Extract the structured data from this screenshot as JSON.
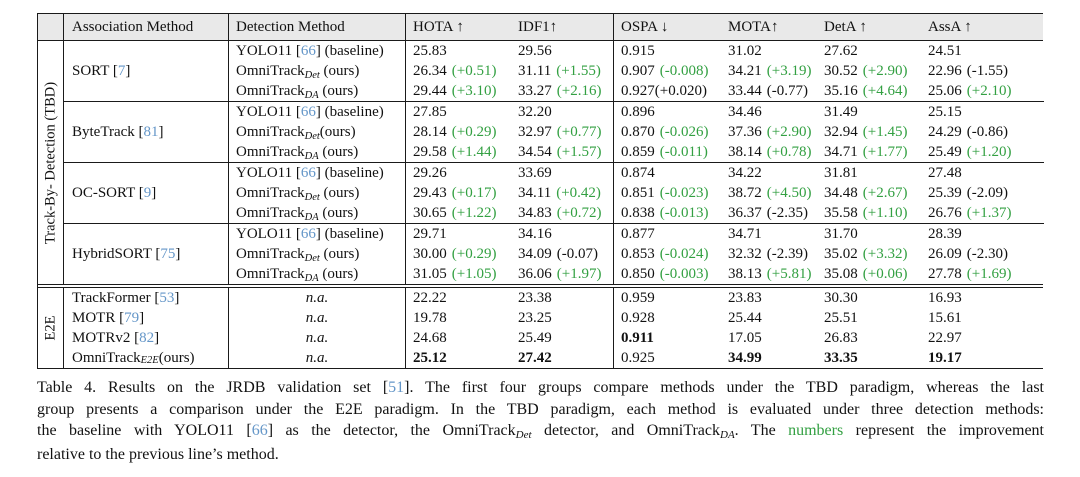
{
  "colors": {
    "improvement_green": "#33a042",
    "citation_blue": "#6496c8",
    "header_background": "#e9e9e9",
    "rule_line": "#1a1a1a"
  },
  "table": {
    "tbd_label": "Track-By- Detection (TBD)",
    "e2e_label": "E2E",
    "col_association": "Association Method",
    "col_detection": "Detection Method",
    "metric_headers": [
      "HOTA ↑",
      "IDF1↑",
      "OSPA ↓",
      "MOTA↑",
      "DetA ↑",
      "AssA ↑"
    ],
    "tbd_groups": [
      {
        "association": [
          {
            "t": "SORT ["
          },
          {
            "t": "7",
            "c": "blue"
          },
          {
            "t": "]"
          }
        ],
        "rows": [
          {
            "det": [
              {
                "t": "YOLO11 ["
              },
              {
                "t": "66",
                "c": "blue"
              },
              {
                "t": "] (baseline)"
              }
            ],
            "cells": [
              {
                "v": "25.83"
              },
              {
                "v": "29.56"
              },
              {
                "v": "0.915"
              },
              {
                "v": "31.02"
              },
              {
                "v": "27.62"
              },
              {
                "v": "24.51"
              }
            ]
          },
          {
            "det": [
              {
                "t": "OmniTrack"
              },
              {
                "t": "Det",
                "sub": true
              },
              {
                "t": " (ours)"
              }
            ],
            "cells": [
              {
                "v": "26.34",
                "d": "(+0.51)",
                "g": true
              },
              {
                "v": "31.11",
                "d": "(+1.55)",
                "g": true
              },
              {
                "v": "0.907",
                "d": "(-0.008)",
                "g": true
              },
              {
                "v": "34.21",
                "d": "(+3.19)",
                "g": true
              },
              {
                "v": "30.52",
                "d": "(+2.90)",
                "g": true
              },
              {
                "v": "22.96",
                "d": "(-1.55)"
              }
            ]
          },
          {
            "det": [
              {
                "t": "OmniTrack"
              },
              {
                "t": "DA",
                "sub": true
              },
              {
                "t": " (ours)"
              }
            ],
            "cells": [
              {
                "v": "29.44",
                "d": "(+3.10)",
                "g": true
              },
              {
                "v": "33.27",
                "d": "(+2.16)",
                "g": true
              },
              {
                "v": "0.927",
                "d": "(+0.020)",
                "ns": true
              },
              {
                "v": "33.44",
                "d": "(-0.77)"
              },
              {
                "v": "35.16",
                "d": "(+4.64)",
                "g": true
              },
              {
                "v": "25.06",
                "d": "(+2.10)",
                "g": true
              }
            ]
          }
        ]
      },
      {
        "association": [
          {
            "t": "ByteTrack ["
          },
          {
            "t": "81",
            "c": "blue"
          },
          {
            "t": "]"
          }
        ],
        "rows": [
          {
            "det": [
              {
                "t": "YOLO11 ["
              },
              {
                "t": "66",
                "c": "blue"
              },
              {
                "t": "] (baseline)"
              }
            ],
            "cells": [
              {
                "v": "27.85"
              },
              {
                "v": "32.20"
              },
              {
                "v": "0.896"
              },
              {
                "v": "34.46"
              },
              {
                "v": "31.49"
              },
              {
                "v": "25.15"
              }
            ]
          },
          {
            "det": [
              {
                "t": "OmniTrack"
              },
              {
                "t": "Det",
                "sub": true
              },
              {
                "t": "(ours)"
              }
            ],
            "cells": [
              {
                "v": "28.14",
                "d": "(+0.29)",
                "g": true
              },
              {
                "v": "32.97",
                "d": "(+0.77)",
                "g": true
              },
              {
                "v": "0.870",
                "d": "(-0.026)",
                "g": true
              },
              {
                "v": "37.36",
                "d": "(+2.90)",
                "g": true
              },
              {
                "v": "32.94",
                "d": "(+1.45)",
                "g": true
              },
              {
                "v": "24.29",
                "d": "(-0.86)"
              }
            ]
          },
          {
            "det": [
              {
                "t": "OmniTrack"
              },
              {
                "t": "DA",
                "sub": true
              },
              {
                "t": " (ours)"
              }
            ],
            "cells": [
              {
                "v": "29.58",
                "d": "(+1.44)",
                "g": true
              },
              {
                "v": "34.54",
                "d": "(+1.57)",
                "g": true
              },
              {
                "v": "0.859",
                "d": "(-0.011)",
                "g": true
              },
              {
                "v": "38.14",
                "d": "(+0.78)",
                "g": true
              },
              {
                "v": "34.71",
                "d": "(+1.77)",
                "g": true
              },
              {
                "v": "25.49",
                "d": "(+1.20)",
                "g": true
              }
            ]
          }
        ]
      },
      {
        "association": [
          {
            "t": "OC-SORT ["
          },
          {
            "t": "9",
            "c": "blue"
          },
          {
            "t": "]"
          }
        ],
        "rows": [
          {
            "det": [
              {
                "t": "YOLO11 ["
              },
              {
                "t": "66",
                "c": "blue"
              },
              {
                "t": "] (baseline)"
              }
            ],
            "cells": [
              {
                "v": "29.26"
              },
              {
                "v": "33.69"
              },
              {
                "v": "0.874"
              },
              {
                "v": "34.22"
              },
              {
                "v": "31.81"
              },
              {
                "v": "27.48"
              }
            ]
          },
          {
            "det": [
              {
                "t": "OmniTrack"
              },
              {
                "t": "Det",
                "sub": true
              },
              {
                "t": " (ours)"
              }
            ],
            "cells": [
              {
                "v": "29.43",
                "d": "(+0.17)",
                "g": true
              },
              {
                "v": "34.11",
                "d": "(+0.42)",
                "g": true
              },
              {
                "v": "0.851",
                "d": "(-0.023)",
                "g": true
              },
              {
                "v": "38.72",
                "d": "(+4.50)",
                "g": true
              },
              {
                "v": "34.48",
                "d": "(+2.67)",
                "g": true
              },
              {
                "v": "25.39",
                "d": "(-2.09)"
              }
            ]
          },
          {
            "det": [
              {
                "t": "OmniTrack"
              },
              {
                "t": "DA",
                "sub": true
              },
              {
                "t": " (ours)"
              }
            ],
            "cells": [
              {
                "v": "30.65",
                "d": "(+1.22)",
                "g": true
              },
              {
                "v": "34.83",
                "d": "(+0.72)",
                "g": true
              },
              {
                "v": "0.838",
                "d": "(-0.013)",
                "g": true
              },
              {
                "v": "36.37",
                "d": "(-2.35)"
              },
              {
                "v": "35.58",
                "d": "(+1.10)",
                "g": true
              },
              {
                "v": "26.76",
                "d": "(+1.37)",
                "g": true
              }
            ]
          }
        ]
      },
      {
        "association": [
          {
            "t": "HybridSORT ["
          },
          {
            "t": "75",
            "c": "blue"
          },
          {
            "t": "]"
          }
        ],
        "rows": [
          {
            "det": [
              {
                "t": "YOLO11 ["
              },
              {
                "t": "66",
                "c": "blue"
              },
              {
                "t": "] (baseline)"
              }
            ],
            "cells": [
              {
                "v": "29.71"
              },
              {
                "v": "34.16"
              },
              {
                "v": "0.877"
              },
              {
                "v": "34.71"
              },
              {
                "v": "31.70"
              },
              {
                "v": "28.39"
              }
            ]
          },
          {
            "det": [
              {
                "t": "OmniTrack"
              },
              {
                "t": "Det",
                "sub": true
              },
              {
                "t": " (ours)"
              }
            ],
            "cells": [
              {
                "v": "30.00",
                "d": "(+0.29)",
                "g": true
              },
              {
                "v": "34.09",
                "d": "(-0.07)"
              },
              {
                "v": "0.853",
                "d": "(-0.024)",
                "g": true
              },
              {
                "v": "32.32",
                "d": "(-2.39)"
              },
              {
                "v": "35.02",
                "d": "(+3.32)",
                "g": true
              },
              {
                "v": "26.09",
                "d": "(-2.30)"
              }
            ]
          },
          {
            "det": [
              {
                "t": "OmniTrack"
              },
              {
                "t": "DA",
                "sub": true
              },
              {
                "t": " (ours)"
              }
            ],
            "cells": [
              {
                "v": "31.05",
                "d": "(+1.05)",
                "g": true
              },
              {
                "v": "36.06",
                "d": "(+1.97)",
                "g": true
              },
              {
                "v": "0.850",
                "d": "(-0.003)",
                "g": true
              },
              {
                "v": "38.13",
                "d": "(+5.81)",
                "g": true
              },
              {
                "v": "35.08",
                "d": "(+0.06)",
                "g": true
              },
              {
                "v": "27.78",
                "d": "(+1.69)",
                "g": true
              }
            ]
          }
        ]
      }
    ],
    "e2e_rows": [
      {
        "association": [
          {
            "t": "TrackFormer ["
          },
          {
            "t": "53",
            "c": "blue"
          },
          {
            "t": "]"
          }
        ],
        "det": [
          {
            "t": "n.a.",
            "i": true
          }
        ],
        "cells": [
          {
            "v": "22.22"
          },
          {
            "v": "23.38"
          },
          {
            "v": "0.959"
          },
          {
            "v": "23.83"
          },
          {
            "v": "30.30"
          },
          {
            "v": "16.93"
          }
        ]
      },
      {
        "association": [
          {
            "t": "MOTR ["
          },
          {
            "t": "79",
            "c": "blue"
          },
          {
            "t": "]"
          }
        ],
        "det": [
          {
            "t": "n.a.",
            "i": true
          }
        ],
        "cells": [
          {
            "v": "19.78"
          },
          {
            "v": "23.25"
          },
          {
            "v": "0.928"
          },
          {
            "v": "25.44"
          },
          {
            "v": "25.51"
          },
          {
            "v": "15.61"
          }
        ]
      },
      {
        "association": [
          {
            "t": "MOTRv2 ["
          },
          {
            "t": "82",
            "c": "blue"
          },
          {
            "t": "]"
          }
        ],
        "det": [
          {
            "t": "n.a.",
            "i": true
          }
        ],
        "cells": [
          {
            "v": "24.68"
          },
          {
            "v": "25.49"
          },
          {
            "v": "0.911",
            "b": true
          },
          {
            "v": "17.05"
          },
          {
            "v": "26.83"
          },
          {
            "v": "22.97"
          }
        ]
      },
      {
        "association": [
          {
            "t": "OmniTrack"
          },
          {
            "t": "E2E",
            "sub": true
          },
          {
            "t": " (ours)"
          }
        ],
        "det": [
          {
            "t": "n.a.",
            "i": true
          }
        ],
        "cells": [
          {
            "v": "25.12",
            "b": true
          },
          {
            "v": "27.42",
            "b": true
          },
          {
            "v": "0.925"
          },
          {
            "v": "34.99",
            "b": true
          },
          {
            "v": "33.35",
            "b": true
          },
          {
            "v": "19.17",
            "b": true
          }
        ]
      }
    ]
  },
  "caption": {
    "lines": [
      [
        {
          "t": "Table 4. Results on the JRDB validation set ["
        },
        {
          "t": "51",
          "c": "blue"
        },
        {
          "t": "]. The first four groups compare methods under the TBD paradigm, whereas the last"
        }
      ],
      [
        {
          "t": "group presents a comparison under the E2E paradigm. In the TBD paradigm, each method is evaluated under three detection methods:"
        }
      ],
      [
        {
          "t": "the baseline with YOLO11 ["
        },
        {
          "t": "66",
          "c": "blue"
        },
        {
          "t": "] as the detector, the OmniTrack"
        },
        {
          "t": "Det",
          "sub": true
        },
        {
          "t": " detector, and OmniTrack"
        },
        {
          "t": "DA",
          "sub": true
        },
        {
          "t": ". The "
        },
        {
          "t": "numbers",
          "c": "green"
        },
        {
          "t": " represent the improvement"
        }
      ],
      [
        {
          "t": "relative to the previous line’s method."
        }
      ]
    ]
  }
}
